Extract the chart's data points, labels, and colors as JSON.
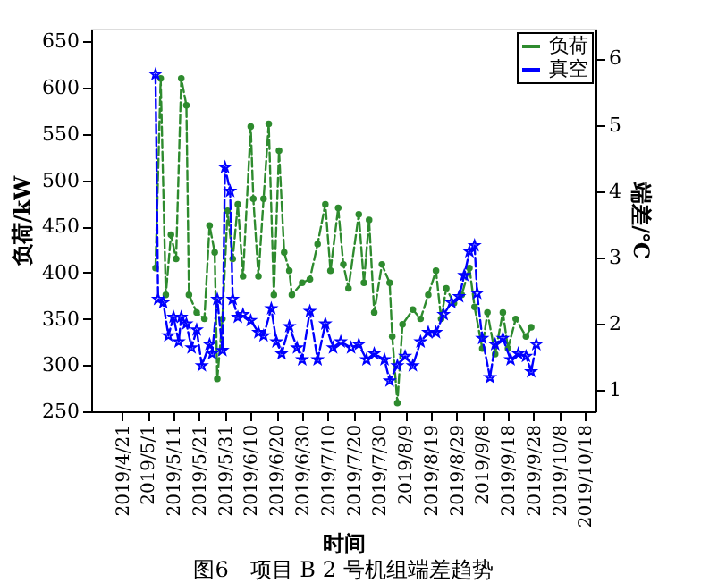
{
  "chart_data": {
    "type": "line",
    "xlabel": "时间",
    "ylabel": "负荷/kW",
    "y2label": "端差/℃",
    "annotations": [
      "图6　项目 B 2 号机组端差趋势"
    ],
    "xlim": [
      "2019-04-09",
      "2019-10-22"
    ],
    "xticks": [
      {
        "value": "2019-04-21",
        "label": "2019/4/21"
      },
      {
        "value": "2019-05-01",
        "label": "2019/5/1"
      },
      {
        "value": "2019-05-11",
        "label": "2019/5/11"
      },
      {
        "value": "2019-05-21",
        "label": "2019/5/21"
      },
      {
        "value": "2019-05-31",
        "label": "2019/5/31"
      },
      {
        "value": "2019-06-10",
        "label": "2019/6/10"
      },
      {
        "value": "2019-06-20",
        "label": "2019/6/20"
      },
      {
        "value": "2019-06-30",
        "label": "2019/6/30"
      },
      {
        "value": "2019-07-10",
        "label": "2019/7/10"
      },
      {
        "value": "2019-07-20",
        "label": "2019/7/20"
      },
      {
        "value": "2019-07-30",
        "label": "2019/7/30"
      },
      {
        "value": "2019-08-09",
        "label": "2019/8/9"
      },
      {
        "value": "2019-08-19",
        "label": "2019/8/19"
      },
      {
        "value": "2019-08-29",
        "label": "2019/8/29"
      },
      {
        "value": "2019-09-08",
        "label": "2019/9/8"
      },
      {
        "value": "2019-09-18",
        "label": "2019/9/18"
      },
      {
        "value": "2019-09-28",
        "label": "2019/9/28"
      },
      {
        "value": "2019-10-08",
        "label": "2019/10/8"
      },
      {
        "value": "2019-10-18",
        "label": "2019/10/18"
      }
    ],
    "ylim": [
      250,
      664
    ],
    "yticks": [
      250,
      300,
      350,
      400,
      450,
      500,
      550,
      600,
      650
    ],
    "y2lim": [
      0.68,
      6.45
    ],
    "y2ticks": [
      1,
      2,
      3,
      4,
      5,
      6
    ],
    "grid": false,
    "legend": "top right",
    "series": [
      {
        "name": "负荷",
        "color": "#2e8b2e",
        "marker": "circle",
        "line_style": "dashed",
        "x": [
          "2019-05-04",
          "2019-05-06",
          "2019-05-08",
          "2019-05-10",
          "2019-05-12",
          "2019-05-14",
          "2019-05-16",
          "2019-05-17",
          "2019-05-20",
          "2019-05-23",
          "2019-05-25",
          "2019-05-27",
          "2019-05-28",
          "2019-05-30",
          "2019-06-01",
          "2019-06-03",
          "2019-06-05",
          "2019-06-07",
          "2019-06-10",
          "2019-06-11",
          "2019-06-13",
          "2019-06-15",
          "2019-06-17",
          "2019-06-19",
          "2019-06-21",
          "2019-06-23",
          "2019-06-25",
          "2019-06-26",
          "2019-06-30",
          "2019-07-03",
          "2019-07-06",
          "2019-07-09",
          "2019-07-11",
          "2019-07-14",
          "2019-07-16",
          "2019-07-18",
          "2019-07-22",
          "2019-07-24",
          "2019-07-26",
          "2019-07-28",
          "2019-07-31",
          "2019-08-03",
          "2019-08-04",
          "2019-08-06",
          "2019-08-08",
          "2019-08-12",
          "2019-08-15",
          "2019-08-18",
          "2019-08-21",
          "2019-08-23",
          "2019-08-25",
          "2019-08-28",
          "2019-08-31",
          "2019-09-03",
          "2019-09-05",
          "2019-09-08",
          "2019-09-10",
          "2019-09-13",
          "2019-09-16",
          "2019-09-18",
          "2019-09-21",
          "2019-09-25",
          "2019-09-27"
        ],
        "values": [
          405,
          610,
          376,
          441,
          415,
          610,
          581,
          376,
          357,
          350,
          451,
          422,
          285,
          350,
          467,
          415,
          474,
          396,
          558,
          480,
          396,
          480,
          561,
          376,
          532,
          422,
          402,
          376,
          389,
          393,
          431,
          474,
          402,
          470,
          409,
          383,
          463,
          389,
          457,
          357,
          409,
          389,
          331,
          259,
          344,
          360,
          350,
          376,
          402,
          350,
          383,
          367,
          376,
          405,
          363,
          318,
          357,
          312,
          357,
          318,
          350,
          331,
          341
        ]
      },
      {
        "name": "真空",
        "color": "#0000ff",
        "marker": "star",
        "line_style": "dashed",
        "axis": "y2",
        "x": [
          "2019-05-04",
          "2019-05-05",
          "2019-05-07",
          "2019-05-09",
          "2019-05-11",
          "2019-05-13",
          "2019-05-14",
          "2019-05-16",
          "2019-05-18",
          "2019-05-20",
          "2019-05-22",
          "2019-05-25",
          "2019-05-26",
          "2019-05-28",
          "2019-05-30",
          "2019-05-31",
          "2019-06-02",
          "2019-06-03",
          "2019-06-05",
          "2019-06-07",
          "2019-06-10",
          "2019-06-13",
          "2019-06-15",
          "2019-06-18",
          "2019-06-20",
          "2019-06-22",
          "2019-06-25",
          "2019-06-28",
          "2019-06-30",
          "2019-07-03",
          "2019-07-06",
          "2019-07-09",
          "2019-07-12",
          "2019-07-15",
          "2019-07-19",
          "2019-07-22",
          "2019-07-25",
          "2019-07-28",
          "2019-08-01",
          "2019-08-03",
          "2019-08-06",
          "2019-08-09",
          "2019-08-12",
          "2019-08-15",
          "2019-08-18",
          "2019-08-21",
          "2019-08-24",
          "2019-08-27",
          "2019-08-30",
          "2019-09-01",
          "2019-09-03",
          "2019-09-05",
          "2019-09-06",
          "2019-09-08",
          "2019-09-11",
          "2019-09-13",
          "2019-09-16",
          "2019-09-19",
          "2019-09-22",
          "2019-09-25",
          "2019-09-27",
          "2019-09-29"
        ],
        "values": [
          5.76,
          2.37,
          2.32,
          1.82,
          2.1,
          1.73,
          2.1,
          2.0,
          1.64,
          1.91,
          1.37,
          1.69,
          1.55,
          2.37,
          1.6,
          4.36,
          4.0,
          2.37,
          2.1,
          2.14,
          2.05,
          1.87,
          1.82,
          2.23,
          1.73,
          1.55,
          1.96,
          1.64,
          1.46,
          2.19,
          1.46,
          2.0,
          1.64,
          1.73,
          1.64,
          1.69,
          1.46,
          1.55,
          1.46,
          1.14,
          1.37,
          1.51,
          1.37,
          1.73,
          1.87,
          1.87,
          2.14,
          2.32,
          2.41,
          2.73,
          3.09,
          3.18,
          2.46,
          1.78,
          1.19,
          1.69,
          1.78,
          1.46,
          1.55,
          1.51,
          1.28,
          1.69
        ]
      }
    ]
  }
}
